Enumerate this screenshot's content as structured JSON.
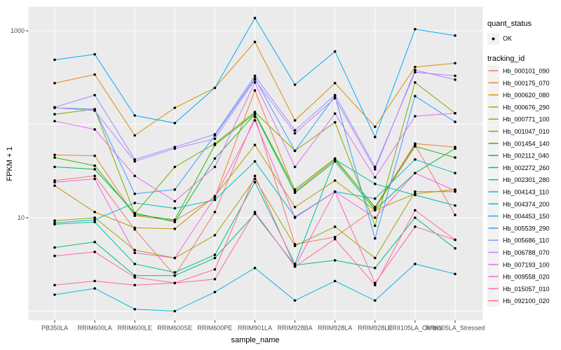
{
  "figure": {
    "xlabel": "sample_name",
    "ylabel": "FPKM + 1",
    "background": "#FFFFFF",
    "panel_bg": "#EBEBEB",
    "grid_color": "#FFFFFF",
    "tick_text_color": "#4D4D4D",
    "point_color": "#000000",
    "legend": {
      "quant_status_title": "quant_status",
      "quant_status_ok_label": "OK",
      "tracking_id_title": "tracking_id",
      "key_bg": "#F2F2F2"
    }
  },
  "chart_data": {
    "type": "line",
    "title": "",
    "xlabel": "sample_name",
    "ylabel": "FPKM + 1",
    "y_scale": "log10",
    "ylim": [
      0.9,
      2000
    ],
    "y_tick_values": [
      10,
      1000
    ],
    "y_gridline_values": [
      1,
      10,
      100,
      1000
    ],
    "grid": true,
    "legend_position": "right",
    "marker": "black-point",
    "categories": [
      "PB350LA",
      "RRIM600LA",
      "RRIM600LE",
      "RRIM600SE",
      "RRIM600PE",
      "RRIM901LA",
      "RRIM928BA",
      "RRIM928LA",
      "RRIM928LE",
      "RRII105LA_Control",
      "RRII105LA_Stressed"
    ],
    "series": [
      {
        "name": "Hb_000101_090",
        "color": "#F8766D",
        "values": [
          25,
          28,
          7.5,
          2.4,
          11.5,
          120,
          5.2,
          6.2,
          12.5,
          60,
          10.7
        ]
      },
      {
        "name": "Hb_000175_070",
        "color": "#EA8331",
        "values": [
          47,
          46,
          10.5,
          9.3,
          16.5,
          230,
          19,
          42,
          13,
          62,
          57
        ]
      },
      {
        "name": "Hb_000620_080",
        "color": "#D89000",
        "values": [
          275,
          340,
          76,
          150,
          245,
          760,
          110,
          275,
          94,
          410,
          450
        ]
      },
      {
        "name": "Hb_000676_290",
        "color": "#C09B00",
        "values": [
          22,
          11.5,
          7.8,
          7.6,
          17,
          60,
          13,
          25,
          12,
          18,
          20
        ]
      },
      {
        "name": "Hb_000771_100",
        "color": "#A3A500",
        "values": [
          9.3,
          10,
          4.5,
          3.7,
          6.5,
          26,
          5,
          8,
          3.7,
          19,
          19
        ]
      },
      {
        "name": "Hb_001047_010",
        "color": "#7CAE00",
        "values": [
          128,
          145,
          11,
          35,
          62,
          135,
          52,
          105,
          8.2,
          280,
          131
        ]
      },
      {
        "name": "Hb_001454_140",
        "color": "#39B600",
        "values": [
          44,
          36,
          10.8,
          9.5,
          60,
          130,
          20,
          43,
          12.8,
          58,
          44
        ]
      },
      {
        "name": "Hb_002112_040",
        "color": "#00BB4E",
        "values": [
          35,
          33,
          11.2,
          9,
          43,
          128,
          18.5,
          40,
          12.2,
          30,
          55
        ]
      },
      {
        "name": "Hb_002272_260",
        "color": "#00BF7D",
        "values": [
          4.8,
          5.5,
          2.4,
          2.4,
          3.7,
          11,
          3.1,
          3.5,
          2.9,
          10,
          4.7
        ]
      },
      {
        "name": "Hb_002301_280",
        "color": "#00C1A3",
        "values": [
          8.5,
          9,
          3.2,
          2.6,
          4,
          24,
          3.2,
          42,
          23,
          17.5,
          13.5
        ]
      },
      {
        "name": "Hb_004143_110",
        "color": "#00BFC4",
        "values": [
          8.8,
          9.5,
          14.4,
          12.6,
          15.5,
          40,
          10.2,
          19,
          16,
          42,
          30
        ]
      },
      {
        "name": "Hb_004374_200",
        "color": "#00BAE0",
        "values": [
          1.5,
          1.75,
          1.05,
          1,
          1.6,
          2.9,
          1.3,
          2.1,
          1.3,
          3.2,
          2.5
        ]
      },
      {
        "name": "Hb_004453_150",
        "color": "#00B0F6",
        "values": [
          490,
          560,
          124,
          103,
          245,
          1370,
          265,
          600,
          73,
          1040,
          890
        ]
      },
      {
        "name": "Hb_005539_290",
        "color": "#35A2FF",
        "values": [
          150,
          145,
          18,
          20,
          76,
          310,
          52,
          200,
          6,
          200,
          106
        ]
      },
      {
        "name": "Hb_005686_110",
        "color": "#9590FF",
        "values": [
          152,
          205,
          42,
          57,
          78,
          330,
          86,
          205,
          35,
          360,
          330
        ]
      },
      {
        "name": "Hb_006788_070",
        "color": "#C77CFF",
        "values": [
          150,
          140,
          40,
          55,
          70,
          300,
          80,
          190,
          33,
          380,
          300
        ]
      },
      {
        "name": "Hb_007193_100",
        "color": "#E76BF3",
        "values": [
          108,
          88,
          28,
          15,
          35,
          280,
          35,
          130,
          27,
          122,
          131
        ]
      },
      {
        "name": "Hb_009558_020",
        "color": "#FA62DB",
        "values": [
          24,
          26,
          4.2,
          3.7,
          16.5,
          110,
          10,
          19,
          10,
          30,
          19.5
        ]
      },
      {
        "name": "Hb_015057_010",
        "color": "#FF62BC",
        "values": [
          3.9,
          4.3,
          2.3,
          2,
          2.2,
          11.5,
          3,
          19,
          2,
          8,
          5.8
        ]
      },
      {
        "name": "Hb_092100_020",
        "color": "#FF6A98",
        "values": [
          1.9,
          2.1,
          1.9,
          2,
          2.8,
          28,
          3,
          5.9,
          1.9,
          12,
          5.8
        ]
      }
    ]
  }
}
